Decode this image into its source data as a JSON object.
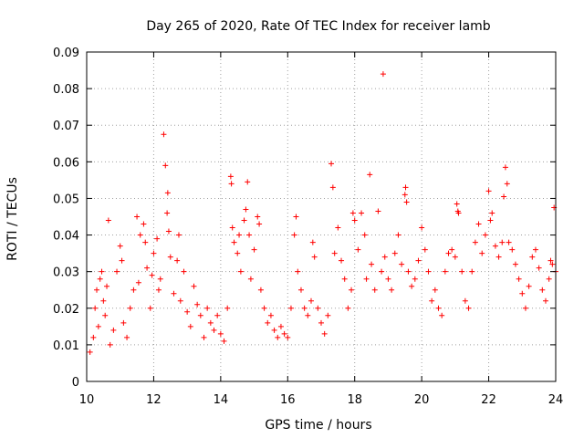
{
  "chart_data": {
    "type": "scatter",
    "title": "Day 265 of 2020, Rate Of TEC Index for receiver lamb",
    "xlabel": "GPS time / hours",
    "ylabel": "ROTI / TECUs",
    "xlim": [
      10,
      24
    ],
    "ylim": [
      0,
      0.09
    ],
    "xticks": [
      "10",
      "12",
      "14",
      "16",
      "18",
      "20",
      "22",
      "24"
    ],
    "yticks": [
      "0",
      "0.01",
      "0.02",
      "0.03",
      "0.04",
      "0.05",
      "0.06",
      "0.07",
      "0.08",
      "0.09"
    ],
    "grid": true,
    "marker": "+",
    "color": "#ff0000",
    "series": [
      {
        "name": "ROTI",
        "points": [
          [
            10.1,
            0.008
          ],
          [
            10.2,
            0.012
          ],
          [
            10.25,
            0.02
          ],
          [
            10.3,
            0.025
          ],
          [
            10.35,
            0.015
          ],
          [
            10.4,
            0.028
          ],
          [
            10.45,
            0.03
          ],
          [
            10.5,
            0.022
          ],
          [
            10.55,
            0.018
          ],
          [
            10.6,
            0.026
          ],
          [
            10.65,
            0.044
          ],
          [
            10.7,
            0.01
          ],
          [
            10.8,
            0.014
          ],
          [
            10.9,
            0.03
          ],
          [
            11.0,
            0.037
          ],
          [
            11.05,
            0.033
          ],
          [
            11.1,
            0.016
          ],
          [
            11.2,
            0.012
          ],
          [
            11.3,
            0.02
          ],
          [
            11.4,
            0.025
          ],
          [
            11.5,
            0.045
          ],
          [
            11.55,
            0.027
          ],
          [
            11.6,
            0.04
          ],
          [
            11.7,
            0.043
          ],
          [
            11.75,
            0.038
          ],
          [
            11.8,
            0.031
          ],
          [
            11.9,
            0.02
          ],
          [
            11.95,
            0.029
          ],
          [
            12.0,
            0.035
          ],
          [
            12.1,
            0.039
          ],
          [
            12.15,
            0.025
          ],
          [
            12.2,
            0.028
          ],
          [
            12.3,
            0.0675
          ],
          [
            12.35,
            0.059
          ],
          [
            12.4,
            0.046
          ],
          [
            12.42,
            0.0515
          ],
          [
            12.45,
            0.041
          ],
          [
            12.5,
            0.034
          ],
          [
            12.6,
            0.024
          ],
          [
            12.7,
            0.033
          ],
          [
            12.75,
            0.04
          ],
          [
            12.8,
            0.022
          ],
          [
            12.9,
            0.03
          ],
          [
            13.0,
            0.019
          ],
          [
            13.1,
            0.015
          ],
          [
            13.2,
            0.026
          ],
          [
            13.3,
            0.021
          ],
          [
            13.4,
            0.018
          ],
          [
            13.5,
            0.012
          ],
          [
            13.6,
            0.02
          ],
          [
            13.7,
            0.016
          ],
          [
            13.8,
            0.014
          ],
          [
            13.9,
            0.018
          ],
          [
            14.0,
            0.013
          ],
          [
            14.1,
            0.011
          ],
          [
            14.2,
            0.02
          ],
          [
            14.3,
            0.056
          ],
          [
            14.32,
            0.054
          ],
          [
            14.35,
            0.042
          ],
          [
            14.4,
            0.038
          ],
          [
            14.5,
            0.035
          ],
          [
            14.55,
            0.04
          ],
          [
            14.6,
            0.03
          ],
          [
            14.7,
            0.044
          ],
          [
            14.75,
            0.047
          ],
          [
            14.8,
            0.0545
          ],
          [
            14.85,
            0.04
          ],
          [
            14.9,
            0.028
          ],
          [
            15.0,
            0.036
          ],
          [
            15.1,
            0.045
          ],
          [
            15.15,
            0.043
          ],
          [
            15.2,
            0.025
          ],
          [
            15.3,
            0.02
          ],
          [
            15.4,
            0.016
          ],
          [
            15.5,
            0.018
          ],
          [
            15.6,
            0.014
          ],
          [
            15.7,
            0.012
          ],
          [
            15.8,
            0.015
          ],
          [
            15.9,
            0.013
          ],
          [
            16.0,
            0.012
          ],
          [
            16.1,
            0.02
          ],
          [
            16.2,
            0.04
          ],
          [
            16.25,
            0.045
          ],
          [
            16.3,
            0.03
          ],
          [
            16.4,
            0.025
          ],
          [
            16.5,
            0.02
          ],
          [
            16.6,
            0.018
          ],
          [
            16.7,
            0.022
          ],
          [
            16.75,
            0.038
          ],
          [
            16.8,
            0.034
          ],
          [
            16.9,
            0.02
          ],
          [
            17.0,
            0.016
          ],
          [
            17.1,
            0.013
          ],
          [
            17.2,
            0.018
          ],
          [
            17.3,
            0.0595
          ],
          [
            17.35,
            0.053
          ],
          [
            17.4,
            0.035
          ],
          [
            17.5,
            0.042
          ],
          [
            17.6,
            0.033
          ],
          [
            17.7,
            0.028
          ],
          [
            17.8,
            0.02
          ],
          [
            17.9,
            0.025
          ],
          [
            17.95,
            0.046
          ],
          [
            18.0,
            0.044
          ],
          [
            18.1,
            0.036
          ],
          [
            18.2,
            0.046
          ],
          [
            18.3,
            0.04
          ],
          [
            18.35,
            0.028
          ],
          [
            18.45,
            0.0565
          ],
          [
            18.5,
            0.032
          ],
          [
            18.6,
            0.025
          ],
          [
            18.7,
            0.0465
          ],
          [
            18.8,
            0.03
          ],
          [
            18.85,
            0.084
          ],
          [
            18.9,
            0.034
          ],
          [
            19.0,
            0.028
          ],
          [
            19.1,
            0.025
          ],
          [
            19.2,
            0.035
          ],
          [
            19.3,
            0.04
          ],
          [
            19.4,
            0.032
          ],
          [
            19.5,
            0.051
          ],
          [
            19.52,
            0.053
          ],
          [
            19.55,
            0.049
          ],
          [
            19.6,
            0.03
          ],
          [
            19.7,
            0.026
          ],
          [
            19.8,
            0.028
          ],
          [
            19.9,
            0.033
          ],
          [
            20.0,
            0.042
          ],
          [
            20.1,
            0.036
          ],
          [
            20.2,
            0.03
          ],
          [
            20.3,
            0.022
          ],
          [
            20.4,
            0.025
          ],
          [
            20.5,
            0.02
          ],
          [
            20.6,
            0.018
          ],
          [
            20.7,
            0.03
          ],
          [
            20.8,
            0.035
          ],
          [
            20.9,
            0.036
          ],
          [
            21.0,
            0.034
          ],
          [
            21.05,
            0.0485
          ],
          [
            21.08,
            0.0465
          ],
          [
            21.1,
            0.046
          ],
          [
            21.2,
            0.03
          ],
          [
            21.3,
            0.022
          ],
          [
            21.4,
            0.02
          ],
          [
            21.5,
            0.03
          ],
          [
            21.6,
            0.038
          ],
          [
            21.7,
            0.043
          ],
          [
            21.8,
            0.035
          ],
          [
            21.9,
            0.04
          ],
          [
            22.0,
            0.052
          ],
          [
            22.05,
            0.044
          ],
          [
            22.1,
            0.046
          ],
          [
            22.2,
            0.037
          ],
          [
            22.3,
            0.034
          ],
          [
            22.4,
            0.038
          ],
          [
            22.45,
            0.0505
          ],
          [
            22.5,
            0.0585
          ],
          [
            22.55,
            0.054
          ],
          [
            22.6,
            0.038
          ],
          [
            22.7,
            0.036
          ],
          [
            22.8,
            0.032
          ],
          [
            22.9,
            0.028
          ],
          [
            23.0,
            0.024
          ],
          [
            23.1,
            0.02
          ],
          [
            23.2,
            0.026
          ],
          [
            23.3,
            0.034
          ],
          [
            23.4,
            0.036
          ],
          [
            23.5,
            0.031
          ],
          [
            23.6,
            0.025
          ],
          [
            23.7,
            0.022
          ],
          [
            23.8,
            0.028
          ],
          [
            23.85,
            0.033
          ],
          [
            23.9,
            0.032
          ],
          [
            23.95,
            0.0475
          ],
          [
            24.0,
            0.03
          ]
        ]
      }
    ]
  }
}
